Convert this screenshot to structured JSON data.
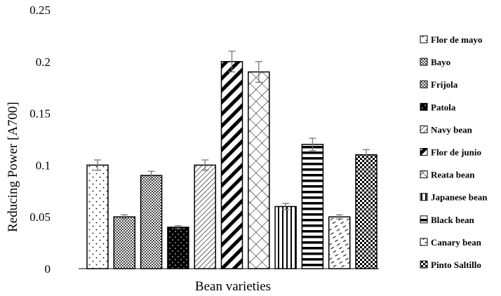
{
  "chart_data": {
    "type": "bar",
    "title": "",
    "xlabel": "Bean varieties",
    "ylabel": "Reducing Power [A700]",
    "ylim": [
      0,
      0.25
    ],
    "yticks": [
      "0",
      "0.05",
      "0.1",
      "0.15",
      "0.2",
      "0.25"
    ],
    "grid": false,
    "legend_position": "right",
    "series": [
      {
        "name": "Flor de mayo",
        "value": 0.1,
        "error": 0.005,
        "pattern": "dots-sparse"
      },
      {
        "name": "Bayo",
        "value": 0.05,
        "error": 0.002,
        "pattern": "checker-fine"
      },
      {
        "name": "Frijola",
        "value": 0.09,
        "error": 0.004,
        "pattern": "checker-fine"
      },
      {
        "name": "Patola",
        "value": 0.04,
        "error": 0.0015,
        "pattern": "black-dots"
      },
      {
        "name": "Navy bean",
        "value": 0.1,
        "error": 0.005,
        "pattern": "diag-thin"
      },
      {
        "name": "Flor de junio",
        "value": 0.2,
        "error": 0.01,
        "pattern": "diag-thick"
      },
      {
        "name": "Reata bean",
        "value": 0.19,
        "error": 0.01,
        "pattern": "diag-cross"
      },
      {
        "name": "Japanese bean",
        "value": 0.06,
        "error": 0.003,
        "pattern": "vertical"
      },
      {
        "name": "Black bean",
        "value": 0.12,
        "error": 0.006,
        "pattern": "horizontal"
      },
      {
        "name": "Canary bean",
        "value": 0.05,
        "error": 0.002,
        "pattern": "dashes"
      },
      {
        "name": "Pinto Saltillo",
        "value": 0.11,
        "error": 0.005,
        "pattern": "checker-dots"
      }
    ]
  }
}
